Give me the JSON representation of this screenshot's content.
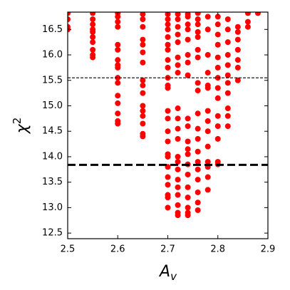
{
  "chart_data": {
    "type": "scatter",
    "xlabel": {
      "base": "A",
      "sub": "v"
    },
    "ylabel": {
      "base": "χ",
      "sup": "2"
    },
    "xlim": [
      2.5,
      2.9
    ],
    "ylim": [
      12.39,
      16.84
    ],
    "xticks": [
      2.5,
      2.6,
      2.7,
      2.8,
      2.9
    ],
    "yticks": [
      12.5,
      {
        "value": 13.0,
        "label": "13.0"
      },
      13.5,
      {
        "value": 14.0,
        "label": "14.0"
      },
      14.5,
      {
        "value": 15.0,
        "label": "15.0"
      },
      15.5,
      {
        "value": 16.0,
        "label": "16.0"
      },
      16.5
    ],
    "color": "#ff0000",
    "hlines": [
      {
        "value": 15.55,
        "style": "thin"
      },
      {
        "value": 13.84,
        "style": "thick"
      }
    ],
    "x": [
      2.5,
      2.5,
      2.5,
      2.5,
      2.55,
      2.55,
      2.55,
      2.55,
      2.55,
      2.55,
      2.55,
      2.55,
      2.55,
      2.55,
      2.6,
      2.6,
      2.6,
      2.6,
      2.6,
      2.6,
      2.6,
      2.6,
      2.6,
      2.6,
      2.6,
      2.6,
      2.6,
      2.6,
      2.6,
      2.6,
      2.65,
      2.65,
      2.65,
      2.65,
      2.65,
      2.65,
      2.65,
      2.65,
      2.65,
      2.65,
      2.65,
      2.65,
      2.65,
      2.65,
      2.65,
      2.65,
      2.7,
      2.7,
      2.7,
      2.7,
      2.7,
      2.7,
      2.7,
      2.7,
      2.7,
      2.7,
      2.7,
      2.7,
      2.7,
      2.7,
      2.7,
      2.7,
      2.7,
      2.7,
      2.7,
      2.7,
      2.7,
      2.7,
      2.7,
      2.7,
      2.72,
      2.72,
      2.72,
      2.72,
      2.72,
      2.72,
      2.72,
      2.72,
      2.72,
      2.72,
      2.72,
      2.72,
      2.72,
      2.72,
      2.72,
      2.72,
      2.72,
      2.72,
      2.72,
      2.72,
      2.72,
      2.74,
      2.74,
      2.74,
      2.74,
      2.74,
      2.74,
      2.74,
      2.74,
      2.74,
      2.74,
      2.74,
      2.74,
      2.74,
      2.74,
      2.74,
      2.74,
      2.74,
      2.74,
      2.74,
      2.74,
      2.76,
      2.76,
      2.76,
      2.76,
      2.76,
      2.76,
      2.76,
      2.76,
      2.76,
      2.76,
      2.76,
      2.76,
      2.76,
      2.76,
      2.76,
      2.76,
      2.76,
      2.76,
      2.76,
      2.78,
      2.78,
      2.78,
      2.78,
      2.78,
      2.78,
      2.78,
      2.78,
      2.78,
      2.78,
      2.78,
      2.78,
      2.78,
      2.78,
      2.8,
      2.8,
      2.8,
      2.8,
      2.8,
      2.8,
      2.8,
      2.8,
      2.8,
      2.8,
      2.8,
      2.8,
      2.8,
      2.8,
      2.82,
      2.82,
      2.82,
      2.82,
      2.82,
      2.82,
      2.82,
      2.82,
      2.82,
      2.82,
      2.82,
      2.84,
      2.84,
      2.84,
      2.84,
      2.84,
      2.84,
      2.84,
      2.86,
      2.86,
      2.86,
      2.88
    ],
    "y": [
      16.82,
      16.7,
      16.55,
      16.5,
      16.82,
      16.7,
      16.6,
      16.5,
      16.45,
      16.35,
      16.25,
      16.1,
      16.0,
      15.95,
      16.82,
      16.75,
      16.65,
      16.55,
      16.2,
      16.1,
      15.9,
      15.8,
      15.75,
      15.55,
      15.45,
      15.2,
      15.05,
      14.85,
      14.7,
      14.65,
      16.8,
      16.7,
      16.55,
      16.3,
      16.2,
      16.05,
      15.85,
      15.5,
      15.4,
      15.25,
      15.0,
      14.9,
      14.8,
      14.65,
      14.45,
      14.4,
      16.8,
      16.7,
      16.6,
      16.5,
      16.35,
      16.2,
      16.1,
      15.9,
      15.75,
      15.55,
      15.4,
      15.35,
      14.9,
      14.75,
      14.5,
      14.3,
      14.05,
      14.0,
      13.8,
      13.6,
      13.45,
      13.25,
      13.2,
      13.0,
      16.8,
      16.7,
      16.55,
      16.4,
      16.25,
      15.95,
      15.8,
      15.65,
      14.95,
      14.75,
      14.55,
      14.35,
      14.0,
      13.9,
      13.75,
      13.55,
      13.4,
      13.25,
      13.05,
      12.9,
      12.85,
      16.8,
      16.75,
      16.6,
      16.5,
      16.3,
      16.0,
      15.85,
      15.6,
      14.75,
      14.6,
      14.3,
      14.15,
      14.05,
      13.85,
      13.65,
      13.4,
      13.2,
      13.0,
      12.9,
      12.85,
      16.82,
      16.7,
      16.6,
      16.45,
      16.35,
      16.1,
      15.95,
      15.45,
      15.3,
      14.85,
      14.55,
      14.35,
      14.1,
      13.9,
      13.75,
      13.55,
      13.3,
      13.1,
      12.95,
      16.75,
      16.5,
      16.0,
      15.65,
      15.4,
      15.35,
      14.9,
      14.7,
      14.5,
      14.2,
      13.9,
      13.8,
      13.6,
      13.35,
      16.75,
      16.6,
      16.4,
      16.2,
      15.95,
      15.75,
      15.55,
      15.35,
      15.15,
      14.8,
      14.6,
      14.35,
      13.9,
      13.85,
      16.7,
      16.5,
      16.25,
      16.0,
      15.8,
      15.6,
      15.45,
      15.25,
      14.95,
      14.8,
      14.6,
      16.55,
      16.45,
      16.3,
      16.1,
      15.9,
      15.75,
      15.5,
      16.82,
      16.65,
      16.55,
      16.82
    ]
  }
}
